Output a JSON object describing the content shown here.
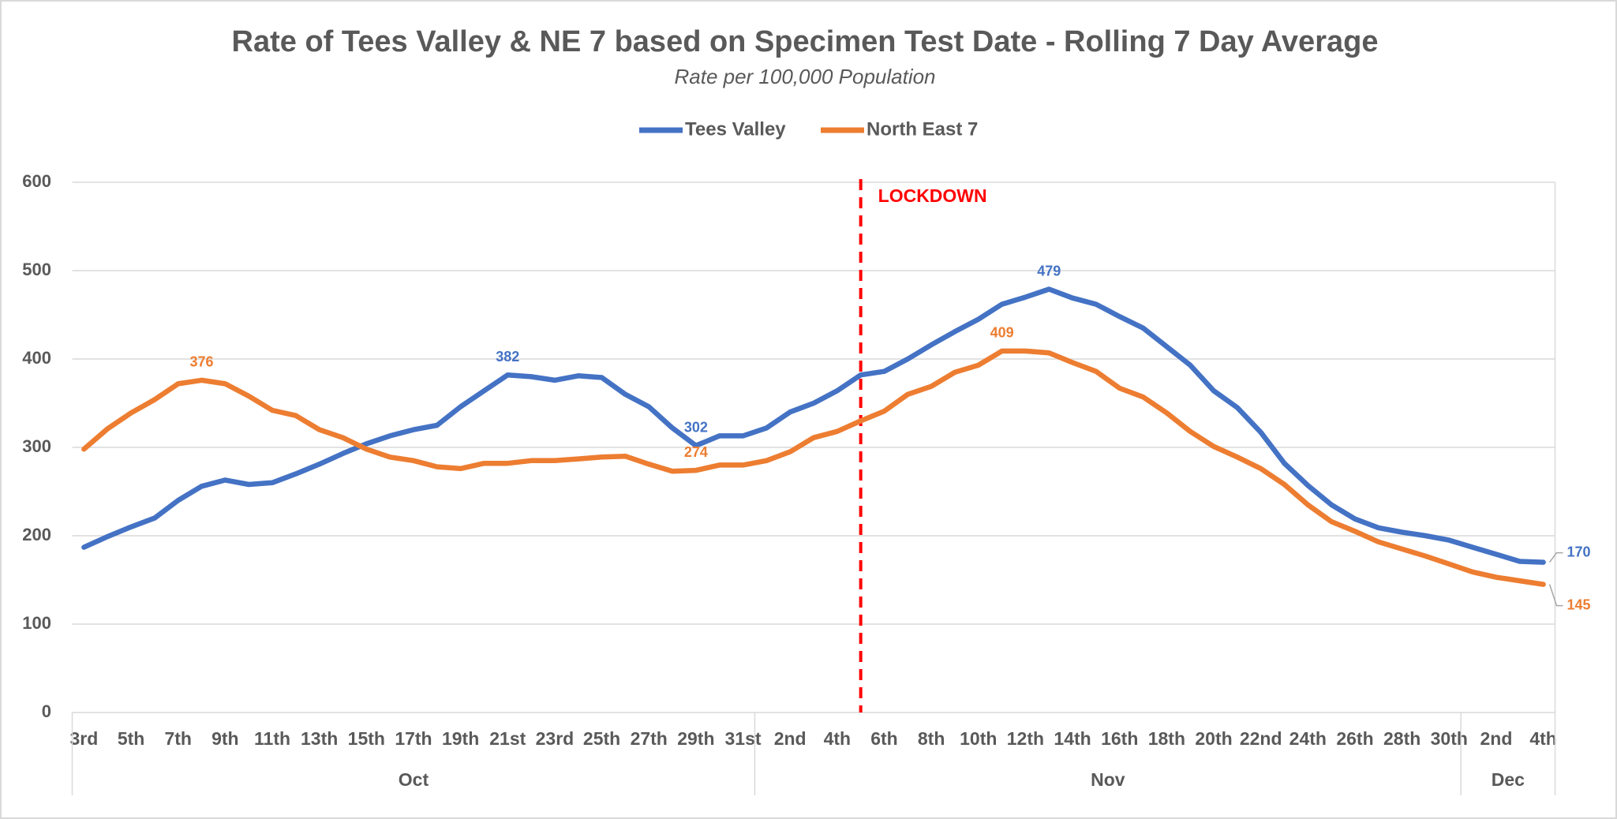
{
  "chart_data": {
    "type": "line",
    "title": "Rate of Tees Valley & NE 7   based on Specimen Test Date - Rolling 7 Day Average",
    "subtitle": "Rate per 100,000 Population",
    "categories": [
      "3rd",
      null,
      "5th",
      null,
      "7th",
      null,
      "9th",
      null,
      "11th",
      null,
      "13th",
      null,
      "15th",
      null,
      "17th",
      null,
      "19th",
      null,
      "21st",
      null,
      "23rd",
      null,
      "25th",
      null,
      "27th",
      null,
      "29th",
      null,
      "31st",
      null,
      "2nd",
      null,
      "4th",
      null,
      "6th",
      null,
      "8th",
      null,
      "10th",
      null,
      "12th",
      null,
      "14th",
      null,
      "16th",
      null,
      "18th",
      null,
      "20th",
      null,
      "22nd",
      null,
      "24th",
      null,
      "26th",
      null,
      "28th",
      null,
      "30th",
      null,
      "2nd",
      null,
      "4th"
    ],
    "groups": [
      {
        "label": "Oct",
        "span": 29
      },
      {
        "label": "Nov",
        "span": 30
      },
      {
        "label": "Dec",
        "span": 4
      }
    ],
    "series": [
      {
        "name": "Tees Valley",
        "color": "#4472c4",
        "values": [
          187,
          199,
          210,
          220,
          240,
          256,
          263,
          258,
          260,
          270,
          281,
          293,
          304,
          313,
          320,
          325,
          346,
          364,
          382,
          380,
          376,
          381,
          379,
          360,
          346,
          322,
          302,
          313,
          313,
          322,
          340,
          350,
          364,
          382,
          386,
          400,
          416,
          431,
          445,
          462,
          470,
          479,
          469,
          462,
          448,
          435,
          414,
          393,
          364,
          345,
          317,
          282,
          257,
          235,
          219,
          209,
          204,
          200,
          195,
          187,
          179,
          171,
          170
        ],
        "value_labels": [
          null,
          null,
          null,
          null,
          null,
          null,
          null,
          null,
          null,
          null,
          null,
          null,
          null,
          null,
          null,
          null,
          null,
          null,
          "382",
          null,
          null,
          null,
          null,
          null,
          null,
          null,
          "302",
          null,
          null,
          null,
          null,
          null,
          null,
          null,
          null,
          null,
          null,
          null,
          null,
          null,
          null,
          "479",
          null,
          null,
          null,
          null,
          null,
          null,
          null,
          null,
          null,
          null,
          null,
          null,
          null,
          null,
          null,
          null,
          null,
          null,
          null,
          null,
          "170"
        ]
      },
      {
        "name": "North East 7",
        "color": "#ed7d31",
        "values": [
          298,
          321,
          339,
          354,
          372,
          376,
          372,
          358,
          342,
          336,
          320,
          311,
          298,
          289,
          285,
          278,
          276,
          282,
          282,
          285,
          285,
          287,
          289,
          290,
          281,
          273,
          274,
          280,
          280,
          285,
          295,
          311,
          318,
          330,
          341,
          360,
          369,
          385,
          393,
          409,
          409,
          407,
          396,
          386,
          367,
          357,
          339,
          318,
          301,
          289,
          276,
          258,
          235,
          216,
          205,
          193,
          185,
          177,
          168,
          159,
          153,
          149,
          145
        ],
        "value_labels": [
          null,
          null,
          null,
          null,
          null,
          "376",
          null,
          null,
          null,
          null,
          null,
          null,
          null,
          null,
          null,
          null,
          null,
          null,
          null,
          null,
          null,
          null,
          null,
          null,
          null,
          null,
          "274",
          null,
          null,
          null,
          null,
          null,
          null,
          null,
          null,
          null,
          null,
          null,
          null,
          "409",
          null,
          null,
          null,
          null,
          null,
          null,
          null,
          null,
          null,
          null,
          null,
          null,
          null,
          null,
          null,
          null,
          null,
          null,
          null,
          null,
          null,
          null,
          "145"
        ]
      }
    ],
    "annotation": {
      "label": "LOCKDOWN",
      "position": 33,
      "color": "#ff0000"
    },
    "ylim": [
      0,
      600
    ],
    "yticks": [
      0,
      100,
      200,
      300,
      400,
      500,
      600
    ],
    "grid": true,
    "legend": "top"
  }
}
